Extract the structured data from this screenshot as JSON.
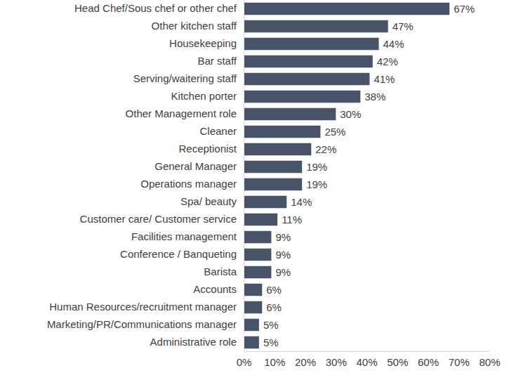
{
  "chart_data": {
    "type": "bar",
    "orientation": "horizontal",
    "categories": [
      "Head Chef/Sous chef or other chef",
      "Other kitchen staff",
      "Housekeeping",
      "Bar staff",
      "Serving/waitering staff",
      "Kitchen porter",
      "Other Management role",
      "Cleaner",
      "Receptionist",
      "General Manager",
      "Operations manager",
      "Spa/ beauty",
      "Customer care/ Customer service",
      "Facilities management",
      "Conference / Banqueting",
      "Barista",
      "Accounts",
      "Human Resources/recruitment manager",
      "Marketing/PR/Communications manager",
      "Administrative role"
    ],
    "values": [
      67,
      47,
      44,
      42,
      41,
      38,
      30,
      25,
      22,
      19,
      19,
      14,
      11,
      9,
      9,
      9,
      6,
      6,
      5,
      5
    ],
    "value_labels": [
      "67%",
      "47%",
      "44%",
      "42%",
      "41%",
      "38%",
      "30%",
      "25%",
      "22%",
      "19%",
      "19%",
      "14%",
      "11%",
      "9%",
      "9%",
      "9%",
      "6%",
      "6%",
      "5%",
      "5%"
    ],
    "color": "#4a5468",
    "xlim": [
      0,
      80
    ],
    "xticks": [
      {
        "value": 0,
        "label": "0%"
      },
      {
        "value": 10,
        "label": "10%"
      },
      {
        "value": 20,
        "label": "20%"
      },
      {
        "value": 30,
        "label": "30%"
      },
      {
        "value": 40,
        "label": "40%"
      },
      {
        "value": 50,
        "label": "50%"
      },
      {
        "value": 60,
        "label": "60%"
      },
      {
        "value": 70,
        "label": "70%"
      },
      {
        "value": 80,
        "label": "80%"
      }
    ],
    "data_labels": true,
    "grid": false
  }
}
